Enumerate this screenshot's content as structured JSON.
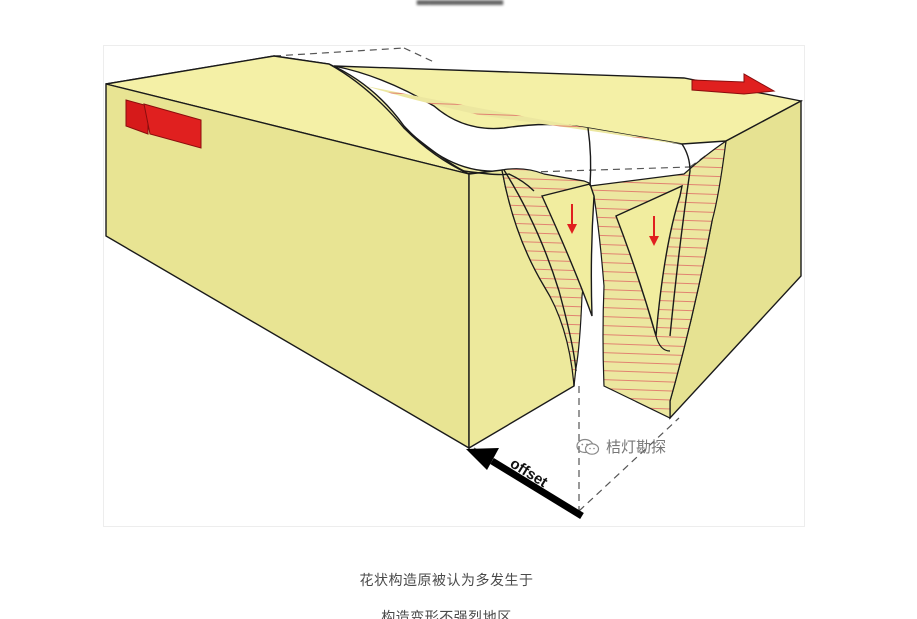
{
  "figure": {
    "arrow_label": "offset",
    "watermark_text": "桔灯勘探",
    "watermark_icon": "wechat-icon",
    "colors": {
      "block_top": "#f4f0a6",
      "block_side": "#ebe798",
      "block_front": "#e6e292",
      "strata_fill": "#ece7a0",
      "strata_lines": "#e0766a",
      "motion_arrow": "#e0201f",
      "outline": "#1a1a1a",
      "offset_arrow": "#000000"
    }
  },
  "caption": {
    "line1": "花状构造原被认为多发生于",
    "line2": "构造变形不强烈地区"
  }
}
